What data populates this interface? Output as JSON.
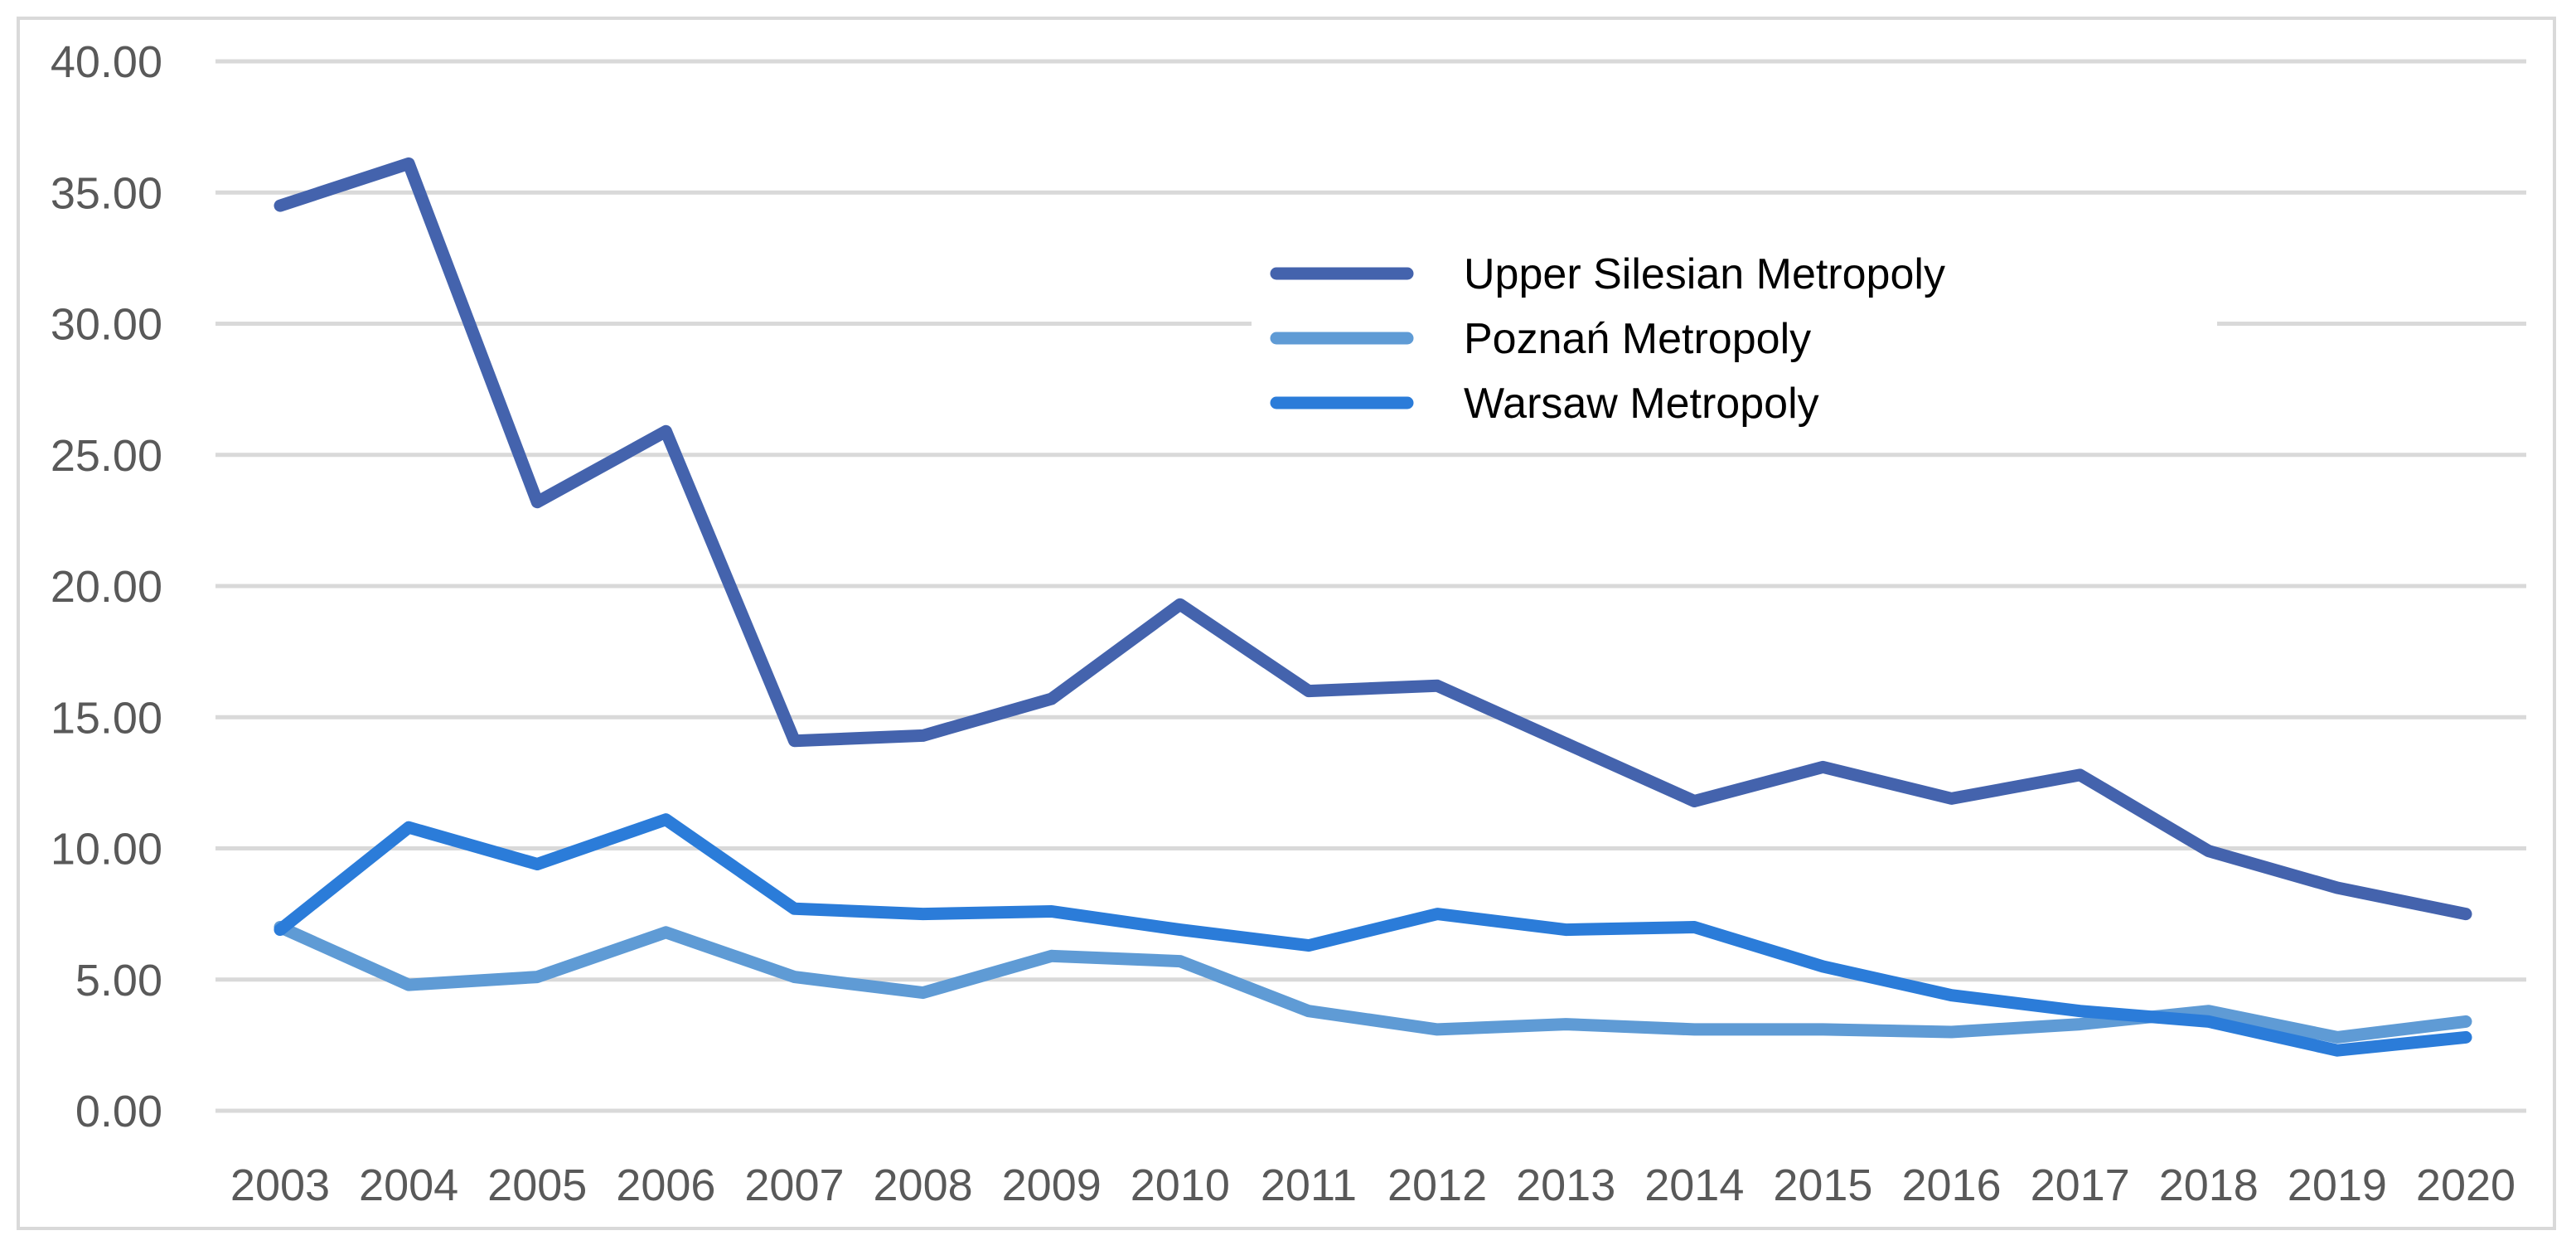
{
  "chart_data": {
    "type": "line",
    "title": "",
    "xlabel": "",
    "ylabel": "",
    "x": [
      "2003",
      "2004",
      "2005",
      "2006",
      "2007",
      "2008",
      "2009",
      "2010",
      "2011",
      "2012",
      "2013",
      "2014",
      "2015",
      "2016",
      "2017",
      "2018",
      "2019",
      "2020"
    ],
    "ylim": [
      0,
      40
    ],
    "yticks": [
      "0.00",
      "5.00",
      "10.00",
      "15.00",
      "20.00",
      "25.00",
      "30.00",
      "35.00",
      "40.00"
    ],
    "grid": true,
    "legend_position": "top-right",
    "series": [
      {
        "name": "Upper Silesian Metropoly",
        "color": "#4463ad",
        "values": [
          34.5,
          36.1,
          23.2,
          25.9,
          14.1,
          14.3,
          15.7,
          19.3,
          16.0,
          16.2,
          14.0,
          11.8,
          13.1,
          11.9,
          12.8,
          9.9,
          8.5,
          7.5
        ]
      },
      {
        "name": "Poznań Metropoly",
        "color": "#5f9bd5",
        "values": [
          7.0,
          4.8,
          5.1,
          6.8,
          5.1,
          4.5,
          5.9,
          5.7,
          3.8,
          3.1,
          3.3,
          3.1,
          3.1,
          3.0,
          3.3,
          3.8,
          2.8,
          3.4
        ]
      },
      {
        "name": "Warsaw Metropoly",
        "color": "#2b7cd9",
        "values": [
          6.9,
          10.8,
          9.4,
          11.1,
          7.7,
          7.5,
          7.6,
          6.9,
          6.3,
          7.5,
          6.9,
          7.0,
          5.5,
          4.4,
          3.8,
          3.4,
          2.3,
          2.8
        ]
      }
    ]
  }
}
